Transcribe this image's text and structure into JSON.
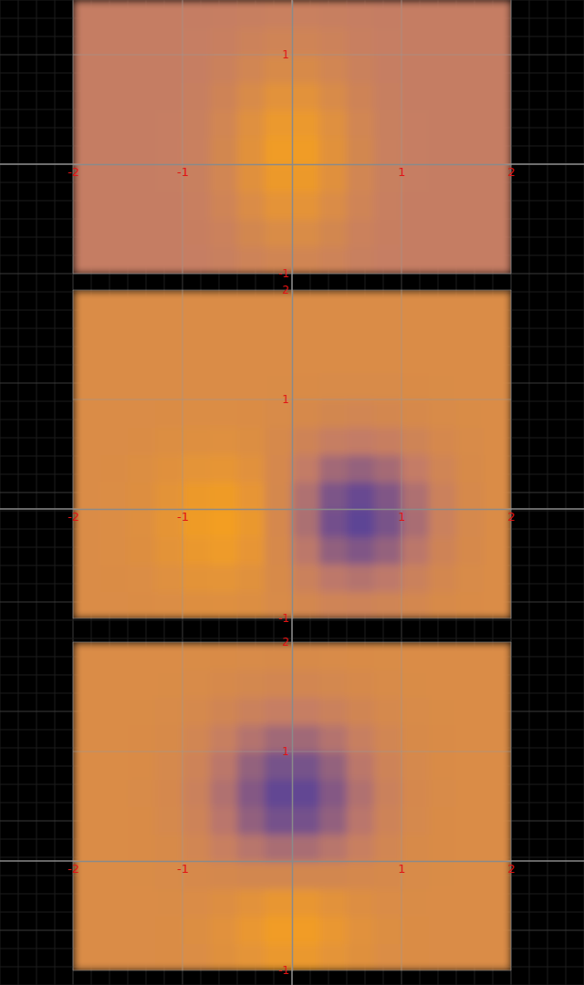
{
  "chart_data": [
    {
      "type": "heatmap",
      "xlim": [
        -2,
        2
      ],
      "ylim": [
        -1,
        1.5
      ],
      "xticks": [
        -2,
        -1,
        1,
        2
      ],
      "yticks": [
        -1,
        1
      ],
      "grid": true,
      "zlim": [
        -1,
        1
      ],
      "x": [
        -1.875,
        -1.625,
        -1.375,
        -1.125,
        -0.875,
        -0.625,
        -0.375,
        -0.125,
        0.125,
        0.375,
        0.625,
        0.875,
        1.125,
        1.375,
        1.625,
        1.875
      ],
      "y": [
        -0.875,
        -0.625,
        -0.375,
        -0.125,
        0.125,
        0.375,
        0.625,
        0.875,
        1.125,
        1.375
      ],
      "values": [
        [
          0.05,
          0.05,
          0.05,
          0.05,
          0.07,
          0.12,
          0.2,
          0.27,
          0.27,
          0.2,
          0.12,
          0.07,
          0.05,
          0.05,
          0.05,
          0.05
        ],
        [
          0.05,
          0.05,
          0.05,
          0.06,
          0.09,
          0.17,
          0.31,
          0.44,
          0.44,
          0.31,
          0.17,
          0.09,
          0.06,
          0.05,
          0.05,
          0.05
        ],
        [
          0.05,
          0.05,
          0.05,
          0.06,
          0.11,
          0.24,
          0.45,
          0.64,
          0.64,
          0.45,
          0.24,
          0.11,
          0.06,
          0.05,
          0.05,
          0.05
        ],
        [
          0.05,
          0.05,
          0.05,
          0.07,
          0.12,
          0.29,
          0.56,
          0.8,
          0.8,
          0.56,
          0.29,
          0.12,
          0.07,
          0.05,
          0.05,
          0.05
        ],
        [
          0.05,
          0.05,
          0.05,
          0.07,
          0.13,
          0.31,
          0.59,
          0.86,
          0.86,
          0.59,
          0.31,
          0.13,
          0.07,
          0.05,
          0.05,
          0.05
        ],
        [
          0.05,
          0.05,
          0.05,
          0.07,
          0.12,
          0.28,
          0.54,
          0.78,
          0.78,
          0.54,
          0.28,
          0.12,
          0.07,
          0.05,
          0.05,
          0.05
        ],
        [
          0.05,
          0.05,
          0.05,
          0.06,
          0.1,
          0.22,
          0.42,
          0.6,
          0.6,
          0.42,
          0.22,
          0.1,
          0.06,
          0.05,
          0.05,
          0.05
        ],
        [
          0.05,
          0.05,
          0.05,
          0.06,
          0.08,
          0.16,
          0.29,
          0.4,
          0.4,
          0.29,
          0.16,
          0.08,
          0.06,
          0.05,
          0.05,
          0.05
        ],
        [
          0.05,
          0.05,
          0.05,
          0.05,
          0.07,
          0.11,
          0.18,
          0.24,
          0.24,
          0.18,
          0.11,
          0.07,
          0.05,
          0.05,
          0.05,
          0.05
        ],
        [
          0.05,
          0.05,
          0.05,
          0.05,
          0.06,
          0.08,
          0.1,
          0.13,
          0.13,
          0.1,
          0.08,
          0.06,
          0.05,
          0.05,
          0.05,
          0.05
        ]
      ]
    },
    {
      "type": "heatmap",
      "xlim": [
        -2,
        2
      ],
      "ylim": [
        -1,
        2
      ],
      "xticks": [
        -2,
        -1,
        1,
        2
      ],
      "yticks": [
        -1,
        1,
        2
      ],
      "grid": true,
      "zlim": [
        -1,
        1
      ],
      "x": [
        -1.875,
        -1.625,
        -1.375,
        -1.125,
        -0.875,
        -0.625,
        -0.375,
        -0.125,
        0.125,
        0.375,
        0.625,
        0.875,
        1.125,
        1.375,
        1.625,
        1.875
      ],
      "y": [
        -0.875,
        -0.625,
        -0.375,
        -0.125,
        0.125,
        0.375,
        0.625,
        0.875,
        1.125,
        1.375,
        1.625,
        1.875
      ],
      "values": [
        [
          0.45,
          0.45,
          0.46,
          0.48,
          0.51,
          0.52,
          0.49,
          0.42,
          0.32,
          0.24,
          0.2,
          0.25,
          0.32,
          0.39,
          0.43,
          0.45
        ],
        [
          0.45,
          0.46,
          0.48,
          0.54,
          0.62,
          0.65,
          0.57,
          0.4,
          0.16,
          -0.04,
          -0.12,
          -0.03,
          0.16,
          0.32,
          0.41,
          0.45
        ],
        [
          0.45,
          0.47,
          0.51,
          0.62,
          0.76,
          0.83,
          0.69,
          0.38,
          -0.05,
          -0.41,
          -0.55,
          -0.38,
          -0.06,
          0.22,
          0.38,
          0.45
        ],
        [
          0.45,
          0.47,
          0.53,
          0.66,
          0.85,
          0.92,
          0.75,
          0.35,
          -0.19,
          -0.66,
          -0.84,
          -0.62,
          -0.21,
          0.15,
          0.36,
          0.45
        ],
        [
          0.45,
          0.47,
          0.51,
          0.63,
          0.79,
          0.85,
          0.69,
          0.34,
          -0.16,
          -0.59,
          -0.76,
          -0.55,
          -0.17,
          0.17,
          0.37,
          0.45
        ],
        [
          0.45,
          0.46,
          0.49,
          0.56,
          0.65,
          0.68,
          0.58,
          0.35,
          0.02,
          -0.27,
          -0.38,
          -0.24,
          0.03,
          0.26,
          0.39,
          0.45
        ],
        [
          0.45,
          0.45,
          0.46,
          0.49,
          0.53,
          0.54,
          0.49,
          0.38,
          0.22,
          0.08,
          0.02,
          0.09,
          0.23,
          0.35,
          0.42,
          0.45
        ],
        [
          0.45,
          0.45,
          0.45,
          0.46,
          0.47,
          0.47,
          0.46,
          0.42,
          0.37,
          0.31,
          0.29,
          0.32,
          0.37,
          0.41,
          0.44,
          0.45
        ],
        [
          0.45,
          0.45,
          0.45,
          0.45,
          0.45,
          0.45,
          0.45,
          0.44,
          0.43,
          0.42,
          0.41,
          0.42,
          0.43,
          0.44,
          0.45,
          0.45
        ],
        [
          0.45,
          0.45,
          0.45,
          0.45,
          0.45,
          0.45,
          0.45,
          0.45,
          0.45,
          0.45,
          0.45,
          0.45,
          0.45,
          0.45,
          0.45,
          0.45
        ],
        [
          0.45,
          0.45,
          0.45,
          0.45,
          0.45,
          0.45,
          0.45,
          0.45,
          0.45,
          0.45,
          0.45,
          0.45,
          0.45,
          0.45,
          0.45,
          0.45
        ],
        [
          0.45,
          0.45,
          0.45,
          0.45,
          0.45,
          0.45,
          0.45,
          0.45,
          0.45,
          0.45,
          0.45,
          0.45,
          0.45,
          0.45,
          0.45,
          0.45
        ]
      ]
    },
    {
      "type": "heatmap",
      "xlim": [
        -2,
        2
      ],
      "ylim": [
        -1,
        2
      ],
      "xticks": [
        -2,
        -1,
        1,
        2
      ],
      "yticks": [
        -1,
        1,
        2
      ],
      "grid": true,
      "zlim": [
        -1,
        1
      ],
      "x": [
        -1.875,
        -1.625,
        -1.375,
        -1.125,
        -0.875,
        -0.625,
        -0.375,
        -0.125,
        0.125,
        0.375,
        0.625,
        0.875,
        1.125,
        1.375,
        1.625,
        1.875
      ],
      "y": [
        -0.875,
        -0.625,
        -0.375,
        -0.125,
        0.125,
        0.375,
        0.625,
        0.875,
        1.125,
        1.375,
        1.625,
        1.875
      ],
      "values": [
        [
          0.45,
          0.45,
          0.45,
          0.46,
          0.48,
          0.55,
          0.65,
          0.75,
          0.75,
          0.65,
          0.55,
          0.48,
          0.46,
          0.45,
          0.45,
          0.45
        ],
        [
          0.45,
          0.45,
          0.45,
          0.46,
          0.49,
          0.58,
          0.73,
          0.88,
          0.88,
          0.73,
          0.58,
          0.49,
          0.46,
          0.45,
          0.45,
          0.45
        ],
        [
          0.45,
          0.45,
          0.45,
          0.44,
          0.45,
          0.5,
          0.61,
          0.71,
          0.71,
          0.61,
          0.5,
          0.45,
          0.44,
          0.45,
          0.45,
          0.45
        ],
        [
          0.45,
          0.45,
          0.44,
          0.42,
          0.38,
          0.34,
          0.31,
          0.31,
          0.31,
          0.31,
          0.34,
          0.38,
          0.42,
          0.44,
          0.45,
          0.45
        ],
        [
          0.45,
          0.45,
          0.43,
          0.39,
          0.28,
          0.11,
          -0.08,
          -0.21,
          -0.21,
          -0.08,
          0.11,
          0.28,
          0.39,
          0.43,
          0.45,
          0.45
        ],
        [
          0.45,
          0.45,
          0.43,
          0.36,
          0.2,
          -0.07,
          -0.4,
          -0.64,
          -0.64,
          -0.4,
          -0.07,
          0.2,
          0.36,
          0.43,
          0.45,
          0.45
        ],
        [
          0.45,
          0.45,
          0.42,
          0.35,
          0.16,
          -0.15,
          -0.52,
          -0.8,
          -0.8,
          -0.52,
          -0.15,
          0.16,
          0.35,
          0.42,
          0.45,
          0.45
        ],
        [
          0.45,
          0.45,
          0.43,
          0.36,
          0.2,
          -0.06,
          -0.39,
          -0.63,
          -0.63,
          -0.39,
          -0.06,
          0.2,
          0.36,
          0.43,
          0.45,
          0.45
        ],
        [
          0.45,
          0.45,
          0.43,
          0.39,
          0.28,
          0.1,
          -0.12,
          -0.28,
          -0.28,
          -0.12,
          0.1,
          0.28,
          0.39,
          0.43,
          0.45,
          0.45
        ],
        [
          0.45,
          0.45,
          0.44,
          0.42,
          0.36,
          0.27,
          0.16,
          0.07,
          0.07,
          0.16,
          0.27,
          0.36,
          0.42,
          0.44,
          0.45,
          0.45
        ],
        [
          0.45,
          0.45,
          0.45,
          0.44,
          0.42,
          0.38,
          0.33,
          0.3,
          0.3,
          0.33,
          0.38,
          0.42,
          0.44,
          0.45,
          0.45,
          0.45
        ],
        [
          0.45,
          0.45,
          0.45,
          0.45,
          0.44,
          0.43,
          0.41,
          0.4,
          0.4,
          0.41,
          0.43,
          0.44,
          0.45,
          0.45,
          0.45,
          0.45
        ]
      ]
    }
  ]
}
